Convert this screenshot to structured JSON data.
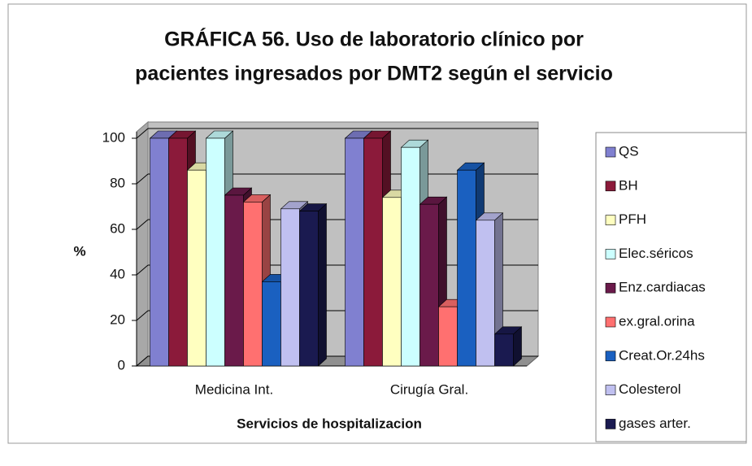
{
  "chart_data": {
    "type": "bar3d",
    "title": [
      "GRÁFICA 56. Uso de laboratorio clínico por",
      "pacientes ingresados por DMT2 según el servicio"
    ],
    "xlabel": "Servicios de hospitalizacion",
    "ylabel": "%",
    "categories": [
      "Medicina Int.",
      "Cirugía Gral."
    ],
    "series": [
      {
        "name": "QS",
        "color": "#8080d0",
        "values": [
          100,
          100
        ]
      },
      {
        "name": "BH",
        "color": "#8b1a3a",
        "values": [
          100,
          100
        ]
      },
      {
        "name": "PFH",
        "color": "#ffffc0",
        "values": [
          86,
          74
        ]
      },
      {
        "name": "Elec.séricos",
        "color": "#ccffff",
        "values": [
          100,
          96
        ]
      },
      {
        "name": "Enz.cardiacas",
        "color": "#6a1a4a",
        "values": [
          75,
          71
        ]
      },
      {
        "name": "ex.gral.orina",
        "color": "#ff7070",
        "values": [
          72,
          26
        ]
      },
      {
        "name": "Creat.Or.24hs",
        "color": "#1a60c0",
        "values": [
          37,
          86
        ]
      },
      {
        "name": "Colesterol",
        "color": "#c0c0f0",
        "values": [
          69,
          64
        ]
      },
      {
        "name": "gases arter.",
        "color": "#1a1a50",
        "values": [
          68,
          14
        ]
      }
    ],
    "ylim": [
      0,
      100
    ],
    "yticks": [
      0,
      20,
      40,
      60,
      80,
      100
    ],
    "grid": true,
    "legend": "right"
  }
}
